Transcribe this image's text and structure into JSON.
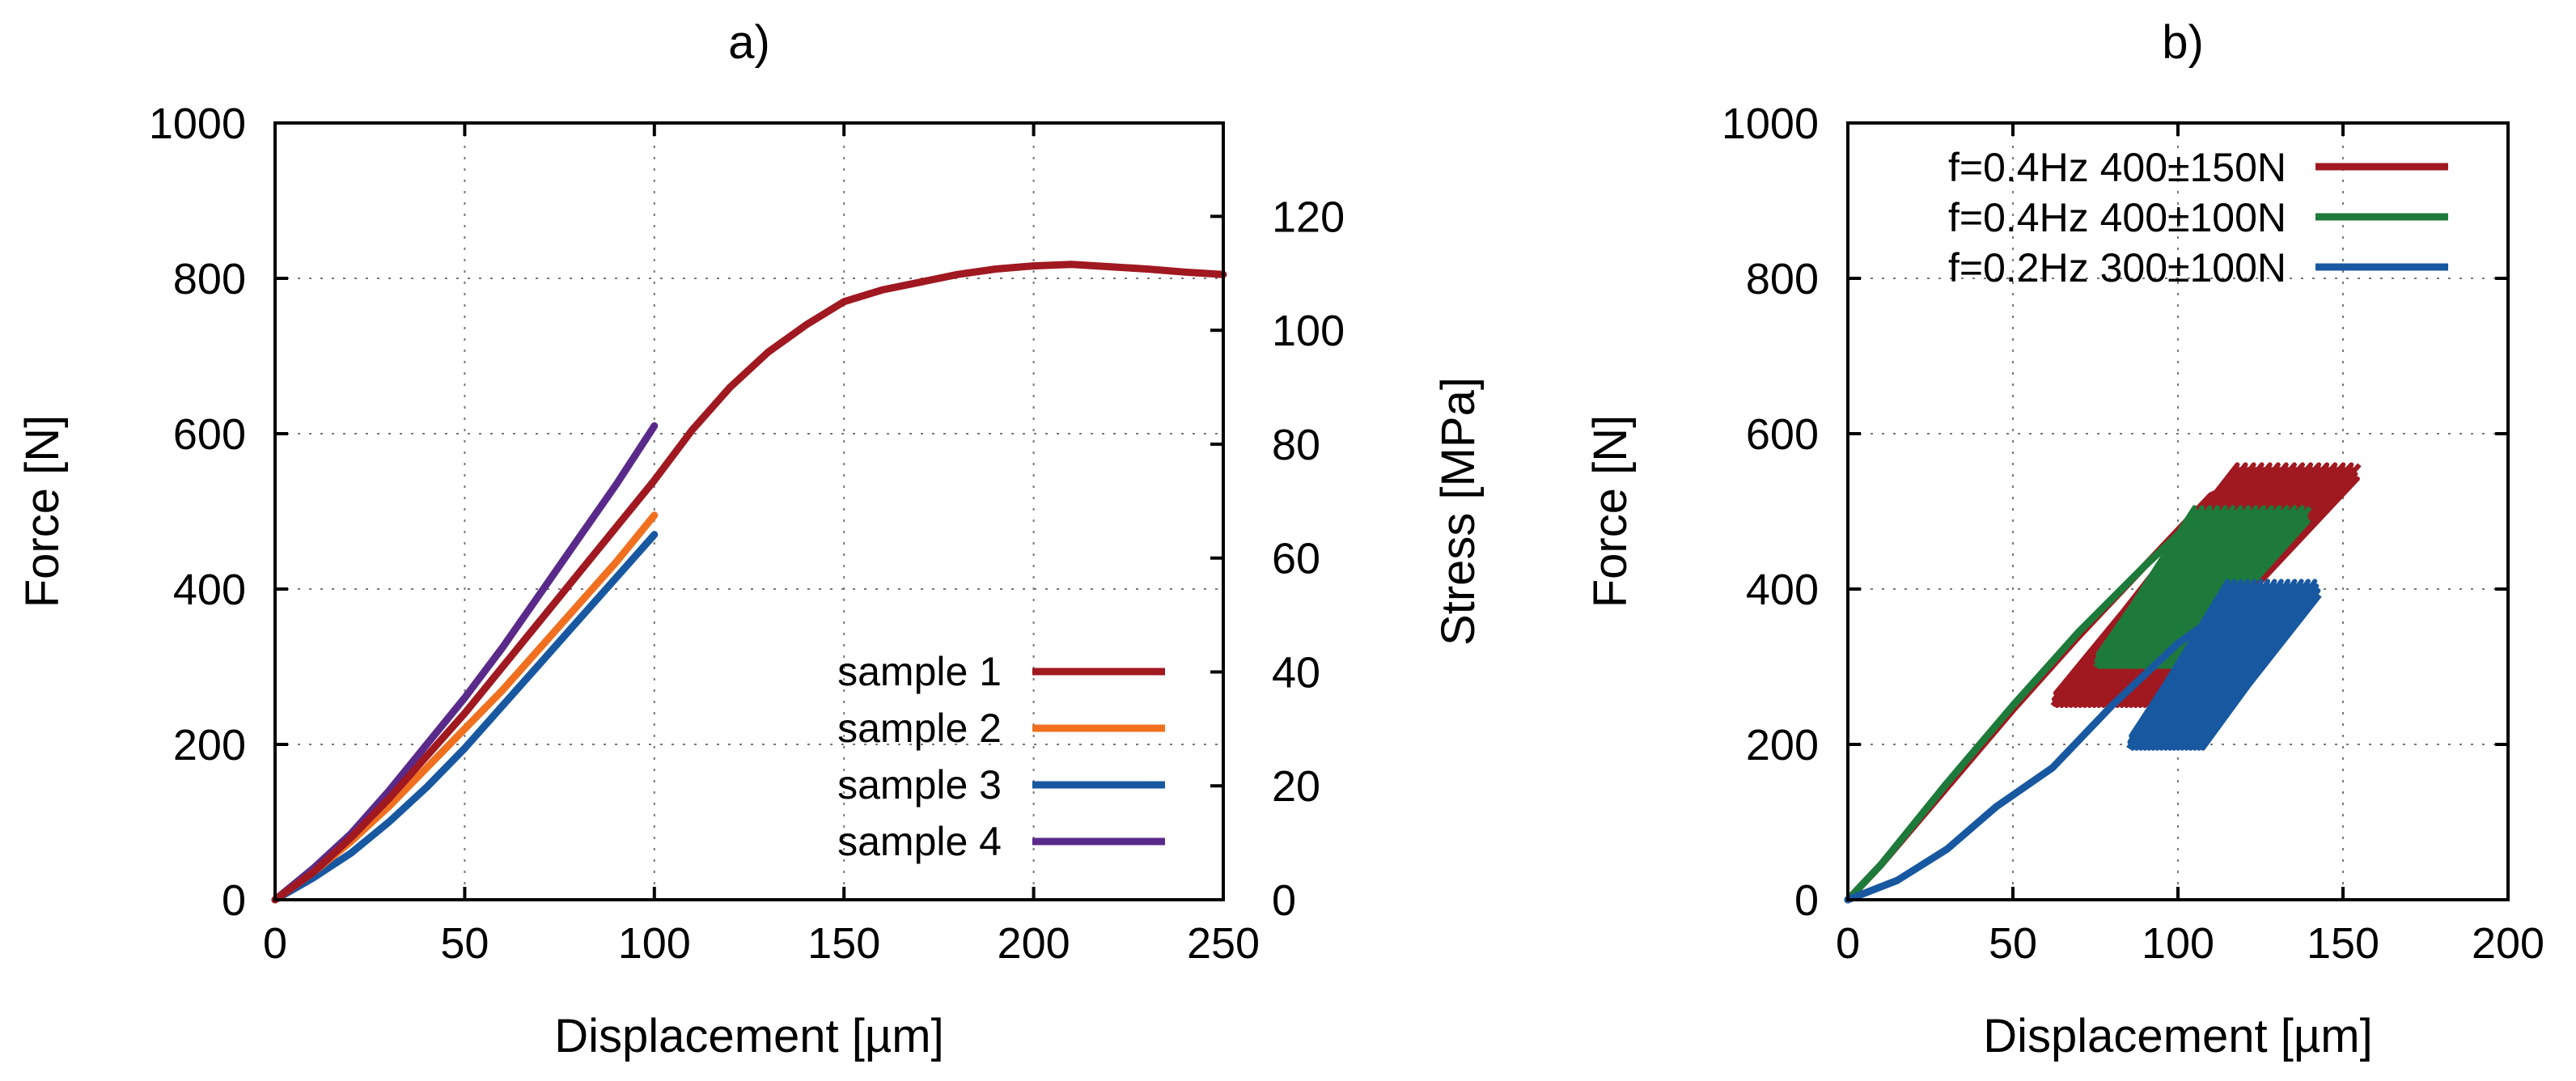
{
  "chart_data": [
    {
      "panel": "a)",
      "type": "line",
      "title": "a)",
      "xlabel": "Displacement [µm]",
      "ylabel": "Force [N]",
      "y2label": "Stress [MPa]",
      "xlim": [
        0,
        250
      ],
      "ylim": [
        0,
        1000
      ],
      "y2lim": [
        0,
        136.4
      ],
      "xticks": [
        0,
        50,
        100,
        150,
        200,
        250
      ],
      "yticks": [
        0,
        200,
        400,
        600,
        800,
        1000
      ],
      "y2ticks": [
        0,
        20,
        40,
        60,
        80,
        100,
        120
      ],
      "grid": true,
      "legend_position": "bottom-right",
      "series": [
        {
          "name": "sample 1",
          "color": "#a01820",
          "x": [
            0,
            10,
            20,
            30,
            40,
            50,
            60,
            70,
            80,
            90,
            100,
            110,
            120,
            130,
            140,
            150,
            160,
            170,
            180,
            190,
            200,
            210,
            220,
            230,
            240,
            250
          ],
          "y": [
            0,
            35,
            80,
            130,
            185,
            240,
            300,
            360,
            420,
            480,
            540,
            605,
            660,
            705,
            740,
            770,
            785,
            795,
            805,
            812,
            816,
            818,
            815,
            812,
            808,
            805
          ]
        },
        {
          "name": "sample 2",
          "color": "#f07020",
          "x": [
            0,
            10,
            20,
            30,
            40,
            50,
            60,
            70,
            80,
            90,
            100
          ],
          "y": [
            0,
            35,
            75,
            120,
            170,
            220,
            270,
            325,
            380,
            435,
            495
          ]
        },
        {
          "name": "sample 3",
          "color": "#1858a0",
          "x": [
            0,
            10,
            20,
            30,
            40,
            50,
            60,
            70,
            80,
            90,
            100
          ],
          "y": [
            0,
            28,
            60,
            100,
            145,
            195,
            250,
            305,
            360,
            415,
            470
          ]
        },
        {
          "name": "sample 4",
          "color": "#5a2a8a",
          "x": [
            0,
            10,
            20,
            30,
            40,
            50,
            60,
            70,
            80,
            90,
            100
          ],
          "y": [
            0,
            40,
            85,
            140,
            200,
            260,
            325,
            395,
            465,
            535,
            610
          ]
        }
      ]
    },
    {
      "panel": "b)",
      "type": "line",
      "title": "b)",
      "xlabel": "Displacement [µm]",
      "ylabel": "Force [N]",
      "xlim": [
        0,
        200
      ],
      "ylim": [
        0,
        1000
      ],
      "xticks": [
        0,
        50,
        100,
        150,
        200
      ],
      "yticks": [
        0,
        200,
        400,
        600,
        800,
        1000
      ],
      "grid": true,
      "legend_position": "top-left",
      "series": [
        {
          "name": "f=0.4Hz 400±150N",
          "color": "#a01820",
          "ramp": {
            "x": [
              0,
              10,
              30,
              50,
              70,
              90,
              110,
              125
            ],
            "y": [
              0,
              45,
              145,
              245,
              340,
              430,
              520,
              550
            ]
          },
          "cycles": {
            "x_min": [
              62,
              90
            ],
            "x_max": [
              118,
              155
            ],
            "y_min": 250,
            "y_max": 560,
            "count": 60
          }
        },
        {
          "name": "f=0.4Hz 400±100N",
          "color": "#1e7a3a",
          "ramp": {
            "x": [
              0,
              10,
              30,
              50,
              70,
              90,
              105
            ],
            "y": [
              0,
              45,
              150,
              250,
              345,
              430,
              490
            ]
          },
          "cycles": {
            "x_min": [
              75,
              100
            ],
            "x_max": [
              105,
              140
            ],
            "y_min": 300,
            "y_max": 505,
            "count": 60
          }
        },
        {
          "name": "f=0.2Hz 300±100N",
          "color": "#1858a0",
          "ramp": {
            "x": [
              0,
              15,
              30,
              45,
              62,
              80,
              100,
              115
            ],
            "y": [
              0,
              25,
              65,
              120,
              170,
              250,
              330,
              375
            ]
          },
          "cycles": {
            "x_min": [
              85,
              108
            ],
            "x_max": [
              115,
              143
            ],
            "y_min": 195,
            "y_max": 410,
            "count": 55
          }
        }
      ]
    }
  ]
}
